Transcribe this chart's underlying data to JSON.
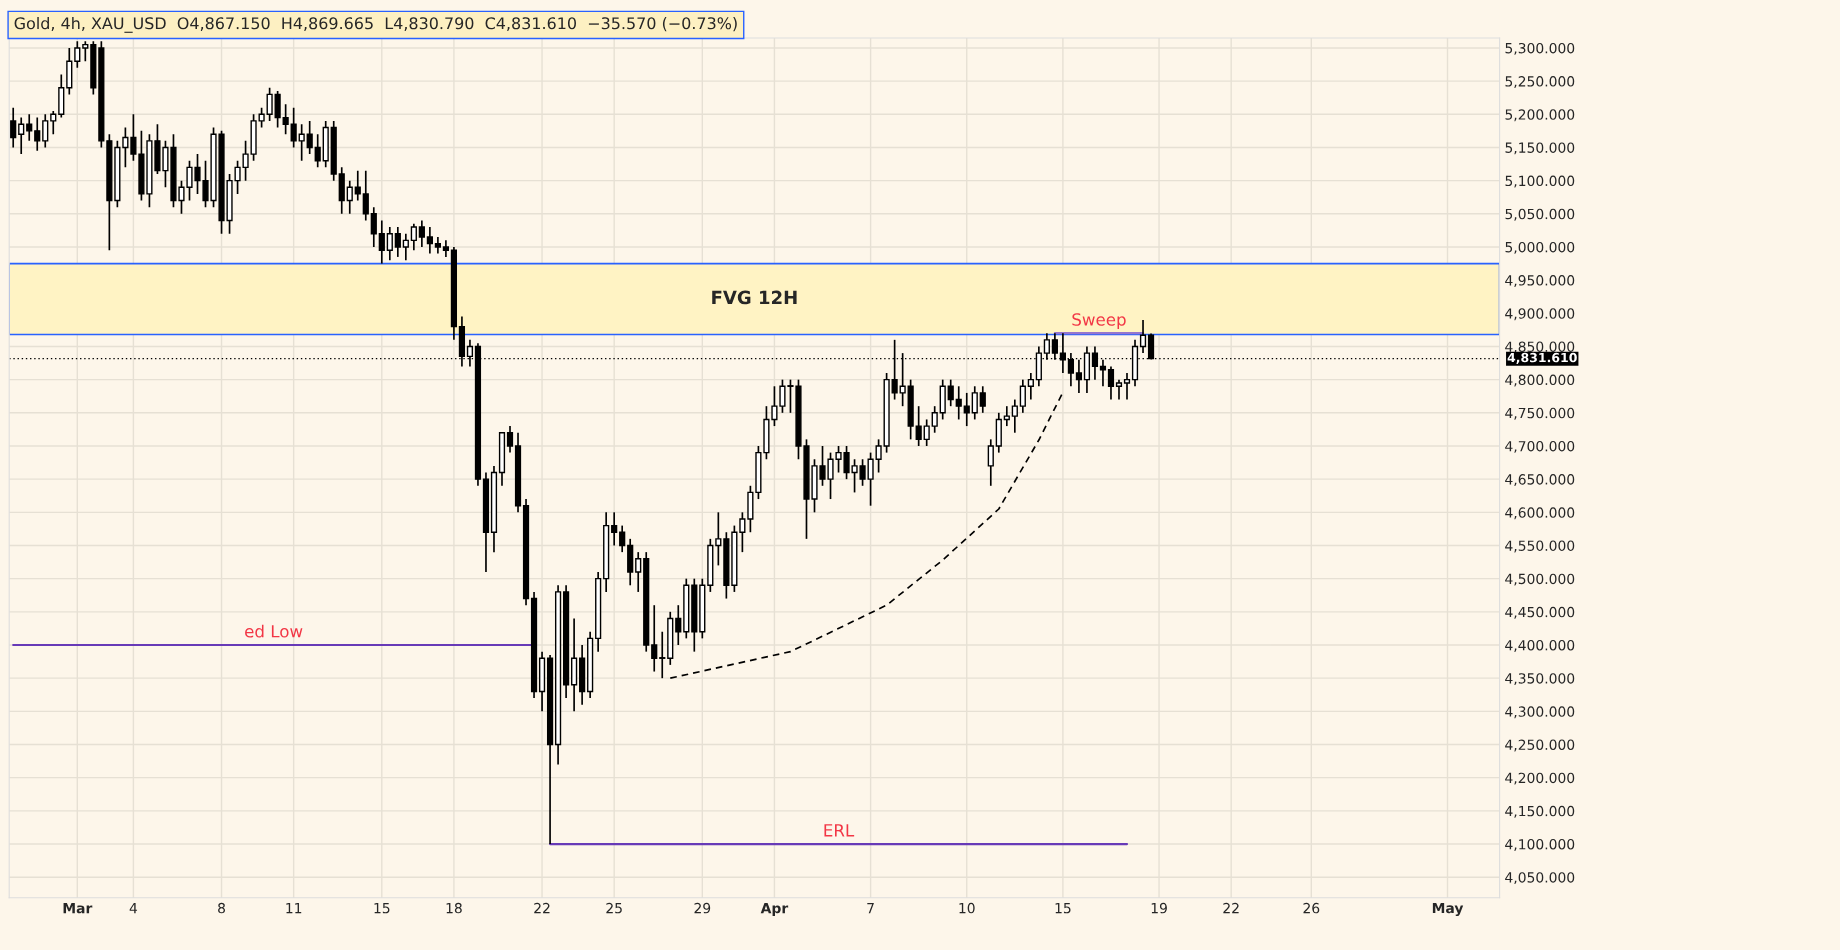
{
  "chart_data": {
    "type": "candlestick",
    "title": "Gold, 4h, XAU_USD  O4,867.150  H4,869.665  L4,830.790  C4,831.610  −35.570 (−0.73%)",
    "categories": [
      null,
      null,
      null,
      null,
      null,
      null,
      null,
      null,
      "Mar",
      null,
      null,
      null,
      null,
      null,
      null,
      "4",
      null,
      null,
      null,
      null,
      null,
      null,
      null,
      null,
      null,
      null,
      "8",
      null,
      null,
      null,
      null,
      null,
      null,
      null,
      null,
      "11",
      null,
      null,
      null,
      null,
      null,
      null,
      null,
      null,
      null,
      null,
      "15",
      null,
      null,
      null,
      null,
      null,
      null,
      null,
      null,
      "18",
      null,
      null,
      null,
      null,
      null,
      null,
      null,
      null,
      null,
      null,
      "22",
      null,
      null,
      null,
      null,
      null,
      null,
      null,
      null,
      "25",
      null,
      null,
      null,
      null,
      null,
      null,
      null,
      null,
      null,
      null,
      "29",
      null,
      null,
      null,
      null,
      null,
      null,
      null,
      null,
      "Apr",
      null,
      null,
      null,
      null,
      null,
      null,
      null,
      null,
      null,
      null,
      null,
      "7",
      null,
      null,
      null,
      null,
      null,
      null,
      null,
      null,
      null,
      null,
      null,
      "10",
      null,
      null,
      null,
      null,
      null,
      null,
      null,
      null,
      null,
      null,
      null,
      "15",
      null,
      null,
      null,
      null,
      null,
      null,
      null,
      null,
      null,
      null,
      null,
      "19",
      null,
      null,
      null,
      null,
      null,
      null,
      null,
      null,
      "22",
      null,
      null,
      null,
      null,
      null,
      null,
      null,
      null,
      null,
      "26",
      null,
      null,
      null,
      null,
      null,
      null,
      null,
      null,
      null,
      null,
      null,
      null,
      null,
      null,
      null,
      null,
      "May",
      null,
      null,
      null,
      null,
      null,
      null
    ],
    "ohlc": [
      [
        5190,
        5210,
        5150,
        5165
      ],
      [
        5170,
        5195,
        5140,
        5185
      ],
      [
        5185,
        5200,
        5160,
        5175
      ],
      [
        5175,
        5195,
        5145,
        5160
      ],
      [
        5160,
        5200,
        5150,
        5190
      ],
      [
        5190,
        5205,
        5170,
        5200
      ],
      [
        5200,
        5260,
        5195,
        5240
      ],
      [
        5240,
        5300,
        5230,
        5280
      ],
      [
        5280,
        5310,
        5270,
        5300
      ],
      [
        5300,
        5310,
        5280,
        5305
      ],
      [
        5305,
        5310,
        5230,
        5240
      ],
      [
        5300,
        5310,
        5150,
        5160
      ],
      [
        5160,
        5170,
        4995,
        5070
      ],
      [
        5070,
        5160,
        5060,
        5150
      ],
      [
        5150,
        5180,
        5120,
        5165
      ],
      [
        5165,
        5200,
        5130,
        5140
      ],
      [
        5140,
        5175,
        5070,
        5080
      ],
      [
        5080,
        5170,
        5060,
        5160
      ],
      [
        5160,
        5185,
        5110,
        5115
      ],
      [
        5115,
        5160,
        5090,
        5150
      ],
      [
        5150,
        5170,
        5060,
        5070
      ],
      [
        5070,
        5100,
        5050,
        5090
      ],
      [
        5090,
        5130,
        5070,
        5120
      ],
      [
        5120,
        5140,
        5080,
        5100
      ],
      [
        5100,
        5130,
        5060,
        5070
      ],
      [
        5070,
        5180,
        5060,
        5170
      ],
      [
        5170,
        5175,
        5020,
        5040
      ],
      [
        5040,
        5110,
        5020,
        5100
      ],
      [
        5100,
        5130,
        5080,
        5120
      ],
      [
        5120,
        5160,
        5100,
        5140
      ],
      [
        5140,
        5200,
        5130,
        5190
      ],
      [
        5190,
        5210,
        5180,
        5200
      ],
      [
        5200,
        5240,
        5190,
        5230
      ],
      [
        5230,
        5235,
        5180,
        5195
      ],
      [
        5195,
        5215,
        5170,
        5185
      ],
      [
        5185,
        5210,
        5150,
        5160
      ],
      [
        5160,
        5185,
        5130,
        5170
      ],
      [
        5170,
        5190,
        5140,
        5150
      ],
      [
        5150,
        5170,
        5120,
        5130
      ],
      [
        5130,
        5190,
        5120,
        5180
      ],
      [
        5180,
        5190,
        5100,
        5110
      ],
      [
        5110,
        5120,
        5050,
        5070
      ],
      [
        5070,
        5100,
        5050,
        5090
      ],
      [
        5090,
        5115,
        5070,
        5080
      ],
      [
        5080,
        5115,
        5040,
        5050
      ],
      [
        5050,
        5060,
        5000,
        5020
      ],
      [
        5020,
        5040,
        4975,
        4995
      ],
      [
        4995,
        5030,
        4980,
        5020
      ],
      [
        5020,
        5030,
        4985,
        5000
      ],
      [
        5000,
        5020,
        4980,
        5010
      ],
      [
        5010,
        5035,
        4995,
        5030
      ],
      [
        5030,
        5040,
        5000,
        5015
      ],
      [
        5015,
        5030,
        4990,
        5005
      ],
      [
        5005,
        5015,
        4990,
        5000
      ],
      [
        5000,
        5010,
        4985,
        4995
      ],
      [
        4995,
        5000,
        4860,
        4880
      ],
      [
        4880,
        4895,
        4820,
        4835
      ],
      [
        4835,
        4860,
        4820,
        4850
      ],
      [
        4850,
        4855,
        4640,
        4650
      ],
      [
        4650,
        4660,
        4510,
        4570
      ],
      [
        4570,
        4670,
        4540,
        4660
      ],
      [
        4660,
        4720,
        4640,
        4720
      ],
      [
        4720,
        4730,
        4690,
        4700
      ],
      [
        4700,
        4720,
        4600,
        4610
      ],
      [
        4610,
        4620,
        4460,
        4470
      ],
      [
        4470,
        4480,
        4320,
        4330
      ],
      [
        4330,
        4390,
        4300,
        4380
      ],
      [
        4380,
        4385,
        4100,
        4250
      ],
      [
        4250,
        4490,
        4220,
        4480
      ],
      [
        4480,
        4490,
        4320,
        4340
      ],
      [
        4340,
        4440,
        4300,
        4380
      ],
      [
        4380,
        4400,
        4310,
        4330
      ],
      [
        4330,
        4420,
        4320,
        4410
      ],
      [
        4410,
        4510,
        4390,
        4500
      ],
      [
        4500,
        4600,
        4480,
        4580
      ],
      [
        4580,
        4600,
        4550,
        4570
      ],
      [
        4570,
        4580,
        4540,
        4550
      ],
      [
        4550,
        4560,
        4490,
        4510
      ],
      [
        4510,
        4540,
        4480,
        4530
      ],
      [
        4530,
        4540,
        4390,
        4400
      ],
      [
        4400,
        4460,
        4360,
        4380
      ],
      [
        4380,
        4420,
        4350,
        4380
      ],
      [
        4380,
        4450,
        4370,
        4440
      ],
      [
        4440,
        4460,
        4400,
        4420
      ],
      [
        4420,
        4500,
        4410,
        4490
      ],
      [
        4490,
        4500,
        4390,
        4420
      ],
      [
        4420,
        4500,
        4410,
        4490
      ],
      [
        4490,
        4560,
        4480,
        4550
      ],
      [
        4550,
        4600,
        4520,
        4560
      ],
      [
        4560,
        4570,
        4470,
        4490
      ],
      [
        4490,
        4580,
        4480,
        4570
      ],
      [
        4570,
        4600,
        4540,
        4590
      ],
      [
        4590,
        4640,
        4570,
        4630
      ],
      [
        4630,
        4700,
        4620,
        4690
      ],
      [
        4690,
        4760,
        4680,
        4740
      ],
      [
        4740,
        4790,
        4730,
        4760
      ],
      [
        4760,
        4800,
        4750,
        4790
      ],
      [
        4790,
        4800,
        4750,
        4790
      ],
      [
        4790,
        4800,
        4680,
        4700
      ],
      [
        4700,
        4710,
        4560,
        4620
      ],
      [
        4620,
        4680,
        4600,
        4670
      ],
      [
        4670,
        4700,
        4640,
        4650
      ],
      [
        4650,
        4690,
        4620,
        4680
      ],
      [
        4680,
        4700,
        4660,
        4690
      ],
      [
        4690,
        4700,
        4650,
        4660
      ],
      [
        4660,
        4680,
        4630,
        4670
      ],
      [
        4670,
        4680,
        4640,
        4650
      ],
      [
        4650,
        4690,
        4610,
        4680
      ],
      [
        4680,
        4710,
        4660,
        4700
      ],
      [
        4700,
        4810,
        4690,
        4800
      ],
      [
        4800,
        4860,
        4770,
        4780
      ],
      [
        4780,
        4840,
        4760,
        4790
      ],
      [
        4790,
        4800,
        4710,
        4730
      ],
      [
        4730,
        4760,
        4700,
        4710
      ],
      [
        4710,
        4740,
        4700,
        4730
      ],
      [
        4730,
        4760,
        4720,
        4750
      ],
      [
        4750,
        4800,
        4740,
        4790
      ],
      [
        4790,
        4800,
        4760,
        4770
      ],
      [
        4770,
        4790,
        4740,
        4760
      ],
      [
        4760,
        4780,
        4730,
        4750
      ],
      [
        4750,
        4790,
        4740,
        4780
      ],
      [
        4780,
        4790,
        4750,
        4760
      ],
      [
        4670,
        4710,
        4640,
        4700
      ],
      [
        4700,
        4750,
        4690,
        4740
      ],
      [
        4740,
        4760,
        4730,
        4745
      ],
      [
        4745,
        4770,
        4720,
        4760
      ],
      [
        4760,
        4800,
        4750,
        4790
      ],
      [
        4790,
        4810,
        4770,
        4800
      ],
      [
        4800,
        4850,
        4790,
        4840
      ],
      [
        4840,
        4870,
        4830,
        4860
      ],
      [
        4860,
        4870,
        4830,
        4840
      ],
      [
        4840,
        4870,
        4810,
        4830
      ],
      [
        4830,
        4840,
        4790,
        4810
      ],
      [
        4810,
        4830,
        4780,
        4800
      ],
      [
        4800,
        4850,
        4780,
        4840
      ],
      [
        4840,
        4850,
        4800,
        4820
      ],
      [
        4820,
        4830,
        4790,
        4815
      ],
      [
        4815,
        4820,
        4770,
        4790
      ],
      [
        4790,
        4800,
        4770,
        4795
      ],
      [
        4795,
        4810,
        4770,
        4800
      ],
      [
        4800,
        4860,
        4790,
        4850
      ],
      [
        4850,
        4890,
        4840,
        4867
      ],
      [
        4867.15,
        4869.665,
        4830.79,
        4831.61
      ],
      null,
      null,
      null,
      null,
      null,
      null,
      null,
      null,
      null,
      null,
      null,
      null,
      null,
      null,
      null,
      null,
      null,
      null,
      null,
      null,
      null,
      null,
      null,
      null,
      null,
      null,
      null,
      null,
      null,
      null,
      null,
      null,
      null,
      null,
      null,
      null,
      null,
      null,
      null,
      null,
      null,
      null,
      null
    ],
    "series": [
      {
        "type": "line",
        "name": "ed Low",
        "color": "#673ab7",
        "values": [
          4400,
          4400,
          4400,
          4400,
          4400,
          4400,
          4400,
          4400,
          4400,
          4400,
          4400,
          4400,
          4400,
          4400,
          4400,
          4400,
          4400,
          4400,
          4400,
          4400,
          4400,
          4400,
          4400,
          4400,
          4400,
          4400,
          4400,
          4400,
          4400,
          4400,
          4400,
          4400,
          4400,
          4400,
          4400,
          4400,
          4400,
          4400,
          4400,
          4400,
          4400,
          4400,
          4400,
          4400,
          4400,
          4400,
          4400,
          4400,
          4400,
          4400,
          4400,
          4400,
          4400,
          4400,
          4400,
          4400,
          4400,
          4400,
          4400,
          4400,
          4400,
          4400,
          4400,
          4400,
          4400,
          4400,
          null,
          null,
          null,
          null,
          null,
          null,
          null,
          null,
          null,
          null,
          null,
          null,
          null,
          null,
          null,
          null,
          null,
          null,
          null,
          null,
          null,
          null,
          null,
          null,
          null,
          null,
          null,
          null,
          null,
          null,
          null,
          null,
          null,
          null,
          null,
          null,
          null,
          null,
          null,
          null,
          null,
          null,
          null,
          null,
          null,
          null,
          null,
          null,
          null,
          null,
          null,
          null,
          null,
          null,
          null,
          null,
          null,
          null,
          null,
          null,
          null,
          null,
          null,
          null,
          null,
          null,
          null,
          null,
          null,
          null,
          null,
          null,
          null,
          null,
          null,
          null,
          null,
          null,
          null,
          null,
          null,
          null,
          null,
          null,
          null,
          null,
          null,
          null,
          null,
          null,
          null,
          null,
          null,
          null,
          null,
          null,
          null,
          null,
          null,
          null,
          null,
          null,
          null,
          null,
          null,
          null,
          null,
          null,
          null,
          null,
          null,
          null,
          null,
          null,
          null,
          null,
          null,
          null,
          null,
          null
        ]
      },
      {
        "type": "line",
        "name": "ERL",
        "color": "#673ab7",
        "values": [
          null,
          null,
          null,
          null,
          null,
          null,
          null,
          null,
          null,
          null,
          null,
          null,
          null,
          null,
          null,
          null,
          null,
          null,
          null,
          null,
          null,
          null,
          null,
          null,
          null,
          null,
          null,
          null,
          null,
          null,
          null,
          null,
          null,
          null,
          null,
          null,
          null,
          null,
          null,
          null,
          null,
          null,
          null,
          null,
          null,
          null,
          null,
          null,
          null,
          null,
          null,
          null,
          null,
          null,
          null,
          null,
          null,
          null,
          null,
          null,
          null,
          null,
          null,
          null,
          null,
          null,
          null,
          4100,
          4100,
          4100,
          4100,
          4100,
          4100,
          4100,
          4100,
          4100,
          4100,
          4100,
          4100,
          4100,
          4100,
          4100,
          4100,
          4100,
          4100,
          4100,
          4100,
          4100,
          4100,
          4100,
          4100,
          4100,
          4100,
          4100,
          4100,
          4100,
          4100,
          4100,
          4100,
          4100,
          4100,
          4100,
          4100,
          4100,
          4100,
          4100,
          4100,
          4100,
          4100,
          4100,
          4100,
          4100,
          4100,
          4100,
          4100,
          4100,
          4100,
          4100,
          4100,
          4100,
          4100,
          4100,
          4100,
          4100,
          4100,
          4100,
          4100,
          4100,
          4100,
          4100,
          4100,
          4100,
          4100,
          4100,
          4100,
          4100,
          4100,
          4100,
          4100,
          4100,
          null,
          null,
          null,
          null,
          null,
          null,
          null,
          null,
          null,
          null,
          null,
          null,
          null,
          null,
          null,
          null,
          null,
          null,
          null,
          null,
          null,
          null,
          null,
          null,
          null,
          null,
          null,
          null,
          null,
          null,
          null,
          null,
          null,
          null,
          null,
          null,
          null,
          null,
          null,
          null,
          null,
          null,
          null,
          null,
          null,
          null
        ]
      },
      {
        "type": "line",
        "name": "Sweep",
        "color": "#9575cd",
        "values": [
          null,
          null,
          null,
          null,
          null,
          null,
          null,
          null,
          null,
          null,
          null,
          null,
          null,
          null,
          null,
          null,
          null,
          null,
          null,
          null,
          null,
          null,
          null,
          null,
          null,
          null,
          null,
          null,
          null,
          null,
          null,
          null,
          null,
          null,
          null,
          null,
          null,
          null,
          null,
          null,
          null,
          null,
          null,
          null,
          null,
          null,
          null,
          null,
          null,
          null,
          null,
          null,
          null,
          null,
          null,
          null,
          null,
          null,
          null,
          null,
          null,
          null,
          null,
          null,
          null,
          null,
          null,
          null,
          null,
          null,
          null,
          null,
          null,
          null,
          null,
          null,
          null,
          null,
          null,
          null,
          null,
          null,
          null,
          null,
          null,
          null,
          null,
          null,
          null,
          null,
          null,
          null,
          null,
          null,
          null,
          null,
          null,
          null,
          null,
          null,
          null,
          null,
          null,
          null,
          null,
          null,
          null,
          null,
          null,
          null,
          null,
          null,
          null,
          null,
          null,
          null,
          null,
          null,
          null,
          null,
          null,
          null,
          null,
          null,
          null,
          null,
          null,
          null,
          null,
          null,
          4870,
          4870,
          4870,
          4870,
          4870,
          4870,
          4870,
          4870,
          4870,
          4870,
          4870,
          4870,
          null,
          null,
          null,
          null,
          null,
          null,
          null,
          null,
          null,
          null,
          null,
          null,
          null,
          null,
          null,
          null,
          null,
          null,
          null,
          null,
          null,
          null,
          null,
          null,
          null,
          null,
          null,
          null,
          null,
          null,
          null,
          null,
          null,
          null,
          null,
          null,
          null,
          null,
          null,
          null,
          null,
          null,
          null,
          null
        ]
      },
      {
        "type": "line",
        "color": "#000000",
        "line_style": "dashed",
        "values": [
          null,
          null,
          null,
          null,
          null,
          null,
          null,
          null,
          null,
          null,
          null,
          null,
          null,
          null,
          null,
          null,
          null,
          null,
          null,
          null,
          null,
          null,
          null,
          null,
          null,
          null,
          null,
          null,
          null,
          null,
          null,
          null,
          null,
          null,
          null,
          null,
          null,
          null,
          null,
          null,
          null,
          null,
          null,
          null,
          null,
          null,
          null,
          null,
          null,
          null,
          null,
          null,
          null,
          null,
          null,
          null,
          null,
          null,
          null,
          null,
          null,
          null,
          null,
          null,
          null,
          null,
          null,
          null,
          null,
          null,
          null,
          null,
          null,
          null,
          null,
          null,
          null,
          null,
          null,
          null,
          null,
          null,
          4350,
          null,
          null,
          null,
          null,
          null,
          null,
          null,
          null,
          null,
          null,
          null,
          null,
          null,
          null,
          4390,
          null,
          null,
          null,
          null,
          null,
          null,
          null,
          null,
          null,
          null,
          null,
          4460,
          null,
          null,
          null,
          null,
          null,
          null,
          4528,
          null,
          null,
          null,
          null,
          null,
          null,
          4605,
          null,
          null,
          null,
          null,
          4709,
          null,
          null,
          4781,
          null,
          null,
          null,
          null,
          null,
          null,
          null,
          null,
          null,
          null,
          null,
          null,
          null,
          null,
          null,
          null,
          null,
          null,
          null,
          null,
          null,
          null,
          null,
          null,
          null,
          null,
          null,
          null,
          null,
          null,
          null,
          null,
          null,
          null,
          null,
          null,
          null,
          null,
          null,
          null,
          null,
          null,
          null,
          null,
          null,
          null,
          null,
          null,
          null,
          null,
          null,
          null,
          null,
          null
        ]
      }
    ],
    "bands": [
      {
        "axis": "y",
        "from": 4868,
        "to": 4975,
        "label": "FVG 12H",
        "color": "#fff3c4"
      }
    ],
    "ref_lines": [
      {
        "axis": "y",
        "value": 4831.61,
        "label": "4,831.610",
        "line_style": "dotted",
        "color": "#000000"
      }
    ],
    "ylim": [
      4019,
      5315
    ],
    "yticks": [
      {
        "value": 4050,
        "label": "4,050.000"
      },
      {
        "value": 4100,
        "label": "4,100.000"
      },
      {
        "value": 4150,
        "label": "4,150.000"
      },
      {
        "value": 4200,
        "label": "4,200.000"
      },
      {
        "value": 4250,
        "label": "4,250.000"
      },
      {
        "value": 4300,
        "label": "4,300.000"
      },
      {
        "value": 4350,
        "label": "4,350.000"
      },
      {
        "value": 4400,
        "label": "4,400.000"
      },
      {
        "value": 4450,
        "label": "4,450.000"
      },
      {
        "value": 4500,
        "label": "4,500.000"
      },
      {
        "value": 4550,
        "label": "4,550.000"
      },
      {
        "value": 4600,
        "label": "4,600.000"
      },
      {
        "value": 4650,
        "label": "4,650.000"
      },
      {
        "value": 4700,
        "label": "4,700.000"
      },
      {
        "value": 4750,
        "label": "4,750.000"
      },
      {
        "value": 4800,
        "label": "4,800.000"
      },
      {
        "value": 4850,
        "label": "4,850.000"
      },
      {
        "value": 4900,
        "label": "4,900.000"
      },
      {
        "value": 4950,
        "label": "4,950.000"
      },
      {
        "value": 5000,
        "label": "5,000.000"
      },
      {
        "value": 5050,
        "label": "5,050.000"
      },
      {
        "value": 5100,
        "label": "5,100.000"
      },
      {
        "value": 5150,
        "label": "5,150.000"
      },
      {
        "value": 5200,
        "label": "5,200.000"
      },
      {
        "value": 5250,
        "label": "5,250.000"
      },
      {
        "value": 5300,
        "label": "5,300.000"
      }
    ],
    "grid": true
  }
}
